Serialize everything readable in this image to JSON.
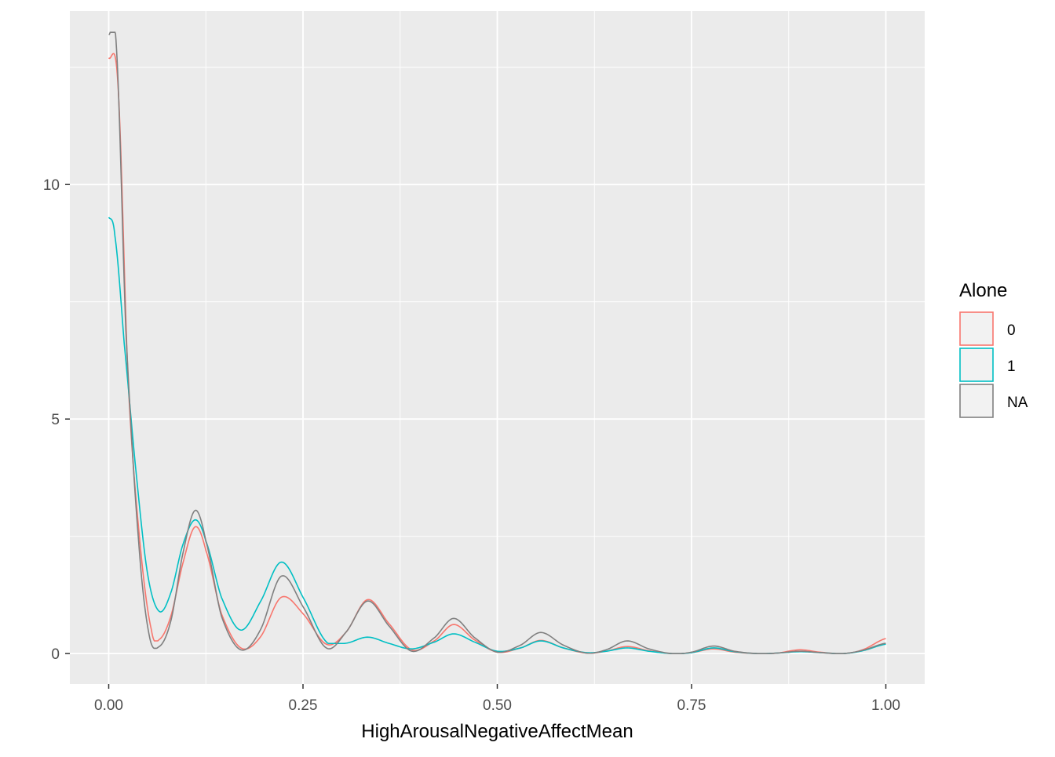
{
  "chart_data": {
    "type": "line",
    "title": "",
    "xlabel": "HighArousalNegativeAffectMean",
    "ylabel": "",
    "xlim": [
      -0.05,
      1.05
    ],
    "ylim": [
      -0.65,
      13.7
    ],
    "x_ticks": [
      0,
      0.25,
      0.5,
      0.75,
      1
    ],
    "x_tick_labels": [
      "0.00",
      "0.25",
      "0.50",
      "0.75",
      "1.00"
    ],
    "y_ticks": [
      0,
      5,
      10
    ],
    "y_tick_labels": [
      "0",
      "5",
      "10"
    ],
    "x_minor_ticks": [
      0.125,
      0.375,
      0.625,
      0.875
    ],
    "y_minor_ticks": [
      2.5,
      7.5,
      12.5
    ],
    "grid": true,
    "legend": {
      "title": "Alone",
      "position": "right",
      "entries": [
        "0",
        "1",
        "NA"
      ]
    },
    "colors": {
      "0": "#F8766D",
      "1": "#00BFC4",
      "NA": "#808080",
      "panel_background": "#EBEBEB",
      "grid": "#FFFFFF",
      "text": "#4D4D4D",
      "title_text": "#000000"
    },
    "series": [
      {
        "name": "0",
        "x": [
          0.0,
          0.012,
          0.025,
          0.04,
          0.055,
          0.065,
          0.08,
          0.095,
          0.111,
          0.125,
          0.145,
          0.17,
          0.195,
          0.222,
          0.25,
          0.28,
          0.305,
          0.333,
          0.36,
          0.39,
          0.42,
          0.444,
          0.47,
          0.5,
          0.53,
          0.556,
          0.585,
          0.615,
          0.64,
          0.667,
          0.695,
          0.725,
          0.75,
          0.778,
          0.805,
          0.835,
          0.86,
          0.889,
          0.915,
          0.945,
          0.97,
          1.0
        ],
        "y": [
          12.7,
          12.1,
          5.8,
          2.4,
          0.5,
          0.3,
          0.8,
          1.9,
          2.7,
          2.2,
          0.85,
          0.12,
          0.35,
          1.2,
          0.85,
          0.2,
          0.45,
          1.15,
          0.65,
          0.08,
          0.28,
          0.62,
          0.3,
          0.03,
          0.12,
          0.28,
          0.12,
          0.01,
          0.05,
          0.15,
          0.06,
          0.0,
          0.02,
          0.1,
          0.03,
          0.0,
          0.01,
          0.08,
          0.03,
          0.0,
          0.08,
          0.32
        ]
      },
      {
        "name": "1",
        "x": [
          0.0,
          0.008,
          0.02,
          0.035,
          0.05,
          0.065,
          0.08,
          0.095,
          0.111,
          0.125,
          0.145,
          0.17,
          0.195,
          0.222,
          0.25,
          0.28,
          0.305,
          0.333,
          0.36,
          0.39,
          0.42,
          0.444,
          0.47,
          0.5,
          0.53,
          0.556,
          0.585,
          0.615,
          0.64,
          0.667,
          0.695,
          0.725,
          0.75,
          0.778,
          0.805,
          0.835,
          0.86,
          0.889,
          0.915,
          0.945,
          0.97,
          1.0
        ],
        "y": [
          9.3,
          8.9,
          6.6,
          3.9,
          1.7,
          0.9,
          1.3,
          2.3,
          2.85,
          2.4,
          1.2,
          0.5,
          1.1,
          1.95,
          1.2,
          0.25,
          0.22,
          0.35,
          0.22,
          0.1,
          0.25,
          0.42,
          0.25,
          0.05,
          0.12,
          0.27,
          0.12,
          0.02,
          0.05,
          0.12,
          0.05,
          0.0,
          0.02,
          0.12,
          0.04,
          0.0,
          0.01,
          0.04,
          0.02,
          0.0,
          0.06,
          0.2
        ]
      },
      {
        "name": "NA",
        "x": [
          0.0,
          0.01,
          0.022,
          0.038,
          0.052,
          0.065,
          0.08,
          0.095,
          0.111,
          0.125,
          0.145,
          0.17,
          0.195,
          0.222,
          0.25,
          0.28,
          0.305,
          0.333,
          0.36,
          0.39,
          0.42,
          0.444,
          0.47,
          0.5,
          0.53,
          0.556,
          0.585,
          0.615,
          0.64,
          0.667,
          0.695,
          0.725,
          0.75,
          0.778,
          0.805,
          0.835,
          0.86,
          0.889,
          0.915,
          0.945,
          0.97,
          1.0
        ],
        "y": [
          13.2,
          12.9,
          6.9,
          2.5,
          0.4,
          0.15,
          0.7,
          2.1,
          3.05,
          2.4,
          0.8,
          0.08,
          0.5,
          1.65,
          1.0,
          0.12,
          0.45,
          1.12,
          0.6,
          0.05,
          0.35,
          0.75,
          0.35,
          0.03,
          0.18,
          0.45,
          0.18,
          0.01,
          0.08,
          0.27,
          0.1,
          0.0,
          0.03,
          0.16,
          0.05,
          0.0,
          0.01,
          0.05,
          0.02,
          0.0,
          0.07,
          0.22
        ]
      }
    ]
  }
}
